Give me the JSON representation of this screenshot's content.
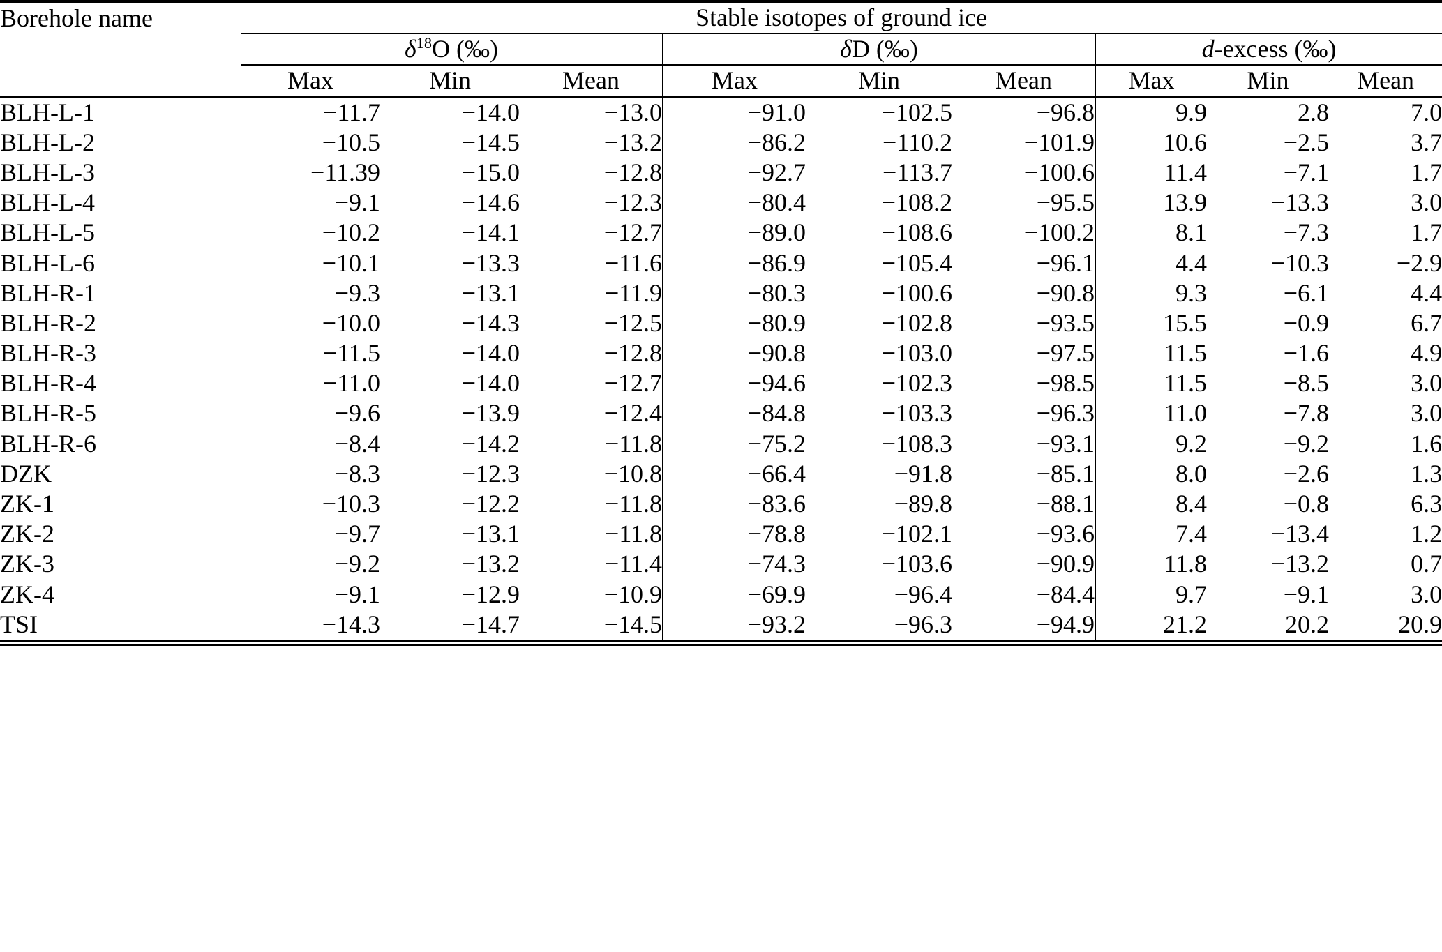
{
  "page": {
    "background_color": "#ffffff",
    "text_color": "#000000"
  },
  "table": {
    "corner_header": "Borehole name",
    "group_title": "Stable isotopes of ground ice",
    "groups": [
      {
        "sym": "δ",
        "sup": "18",
        "rest": "O (‰)"
      },
      {
        "sym": "δ",
        "sup": "",
        "rest": "D (‰)"
      },
      {
        "sym": "d",
        "sup": "",
        "rest": "-excess (‰)"
      }
    ],
    "subheaders": [
      "Max",
      "Min",
      "Mean"
    ],
    "rows": [
      {
        "name": "BLH-L-1",
        "values": [
          "−11.7",
          "−14.0",
          "−13.0",
          "−91.0",
          "−102.5",
          "−96.8",
          "9.9",
          "2.8",
          "7.0"
        ]
      },
      {
        "name": "BLH-L-2",
        "values": [
          "−10.5",
          "−14.5",
          "−13.2",
          "−86.2",
          "−110.2",
          "−101.9",
          "10.6",
          "−2.5",
          "3.7"
        ]
      },
      {
        "name": "BLH-L-3",
        "values": [
          "−11.39",
          "−15.0",
          "−12.8",
          "−92.7",
          "−113.7",
          "−100.6",
          "11.4",
          "−7.1",
          "1.7"
        ]
      },
      {
        "name": "BLH-L-4",
        "values": [
          "−9.1",
          "−14.6",
          "−12.3",
          "−80.4",
          "−108.2",
          "−95.5",
          "13.9",
          "−13.3",
          "3.0"
        ]
      },
      {
        "name": "BLH-L-5",
        "values": [
          "−10.2",
          "−14.1",
          "−12.7",
          "−89.0",
          "−108.6",
          "−100.2",
          "8.1",
          "−7.3",
          "1.7"
        ]
      },
      {
        "name": "BLH-L-6",
        "values": [
          "−10.1",
          "−13.3",
          "−11.6",
          "−86.9",
          "−105.4",
          "−96.1",
          "4.4",
          "−10.3",
          "−2.9"
        ]
      },
      {
        "name": "BLH-R-1",
        "values": [
          "−9.3",
          "−13.1",
          "−11.9",
          "−80.3",
          "−100.6",
          "−90.8",
          "9.3",
          "−6.1",
          "4.4"
        ]
      },
      {
        "name": "BLH-R-2",
        "values": [
          "−10.0",
          "−14.3",
          "−12.5",
          "−80.9",
          "−102.8",
          "−93.5",
          "15.5",
          "−0.9",
          "6.7"
        ]
      },
      {
        "name": "BLH-R-3",
        "values": [
          "−11.5",
          "−14.0",
          "−12.8",
          "−90.8",
          "−103.0",
          "−97.5",
          "11.5",
          "−1.6",
          "4.9"
        ]
      },
      {
        "name": "BLH-R-4",
        "values": [
          "−11.0",
          "−14.0",
          "−12.7",
          "−94.6",
          "−102.3",
          "−98.5",
          "11.5",
          "−8.5",
          "3.0"
        ]
      },
      {
        "name": "BLH-R-5",
        "values": [
          "−9.6",
          "−13.9",
          "−12.4",
          "−84.8",
          "−103.3",
          "−96.3",
          "11.0",
          "−7.8",
          "3.0"
        ]
      },
      {
        "name": "BLH-R-6",
        "values": [
          "−8.4",
          "−14.2",
          "−11.8",
          "−75.2",
          "−108.3",
          "−93.1",
          "9.2",
          "−9.2",
          "1.6"
        ]
      },
      {
        "name": "DZK",
        "values": [
          "−8.3",
          "−12.3",
          "−10.8",
          "−66.4",
          "−91.8",
          "−85.1",
          "8.0",
          "−2.6",
          "1.3"
        ]
      },
      {
        "name": "ZK-1",
        "values": [
          "−10.3",
          "−12.2",
          "−11.8",
          "−83.6",
          "−89.8",
          "−88.1",
          "8.4",
          "−0.8",
          "6.3"
        ]
      },
      {
        "name": "ZK-2",
        "values": [
          "−9.7",
          "−13.1",
          "−11.8",
          "−78.8",
          "−102.1",
          "−93.6",
          "7.4",
          "−13.4",
          "1.2"
        ]
      },
      {
        "name": "ZK-3",
        "values": [
          "−9.2",
          "−13.2",
          "−11.4",
          "−74.3",
          "−103.6",
          "−90.9",
          "11.8",
          "−13.2",
          "0.7"
        ]
      },
      {
        "name": "ZK-4",
        "values": [
          "−9.1",
          "−12.9",
          "−10.9",
          "−69.9",
          "−96.4",
          "−84.4",
          "9.7",
          "−9.1",
          "3.0"
        ]
      },
      {
        "name": "TSI",
        "values": [
          "−14.3",
          "−14.7",
          "−14.5",
          "−93.2",
          "−96.3",
          "−94.9",
          "21.2",
          "20.2",
          "20.9"
        ]
      }
    ]
  }
}
